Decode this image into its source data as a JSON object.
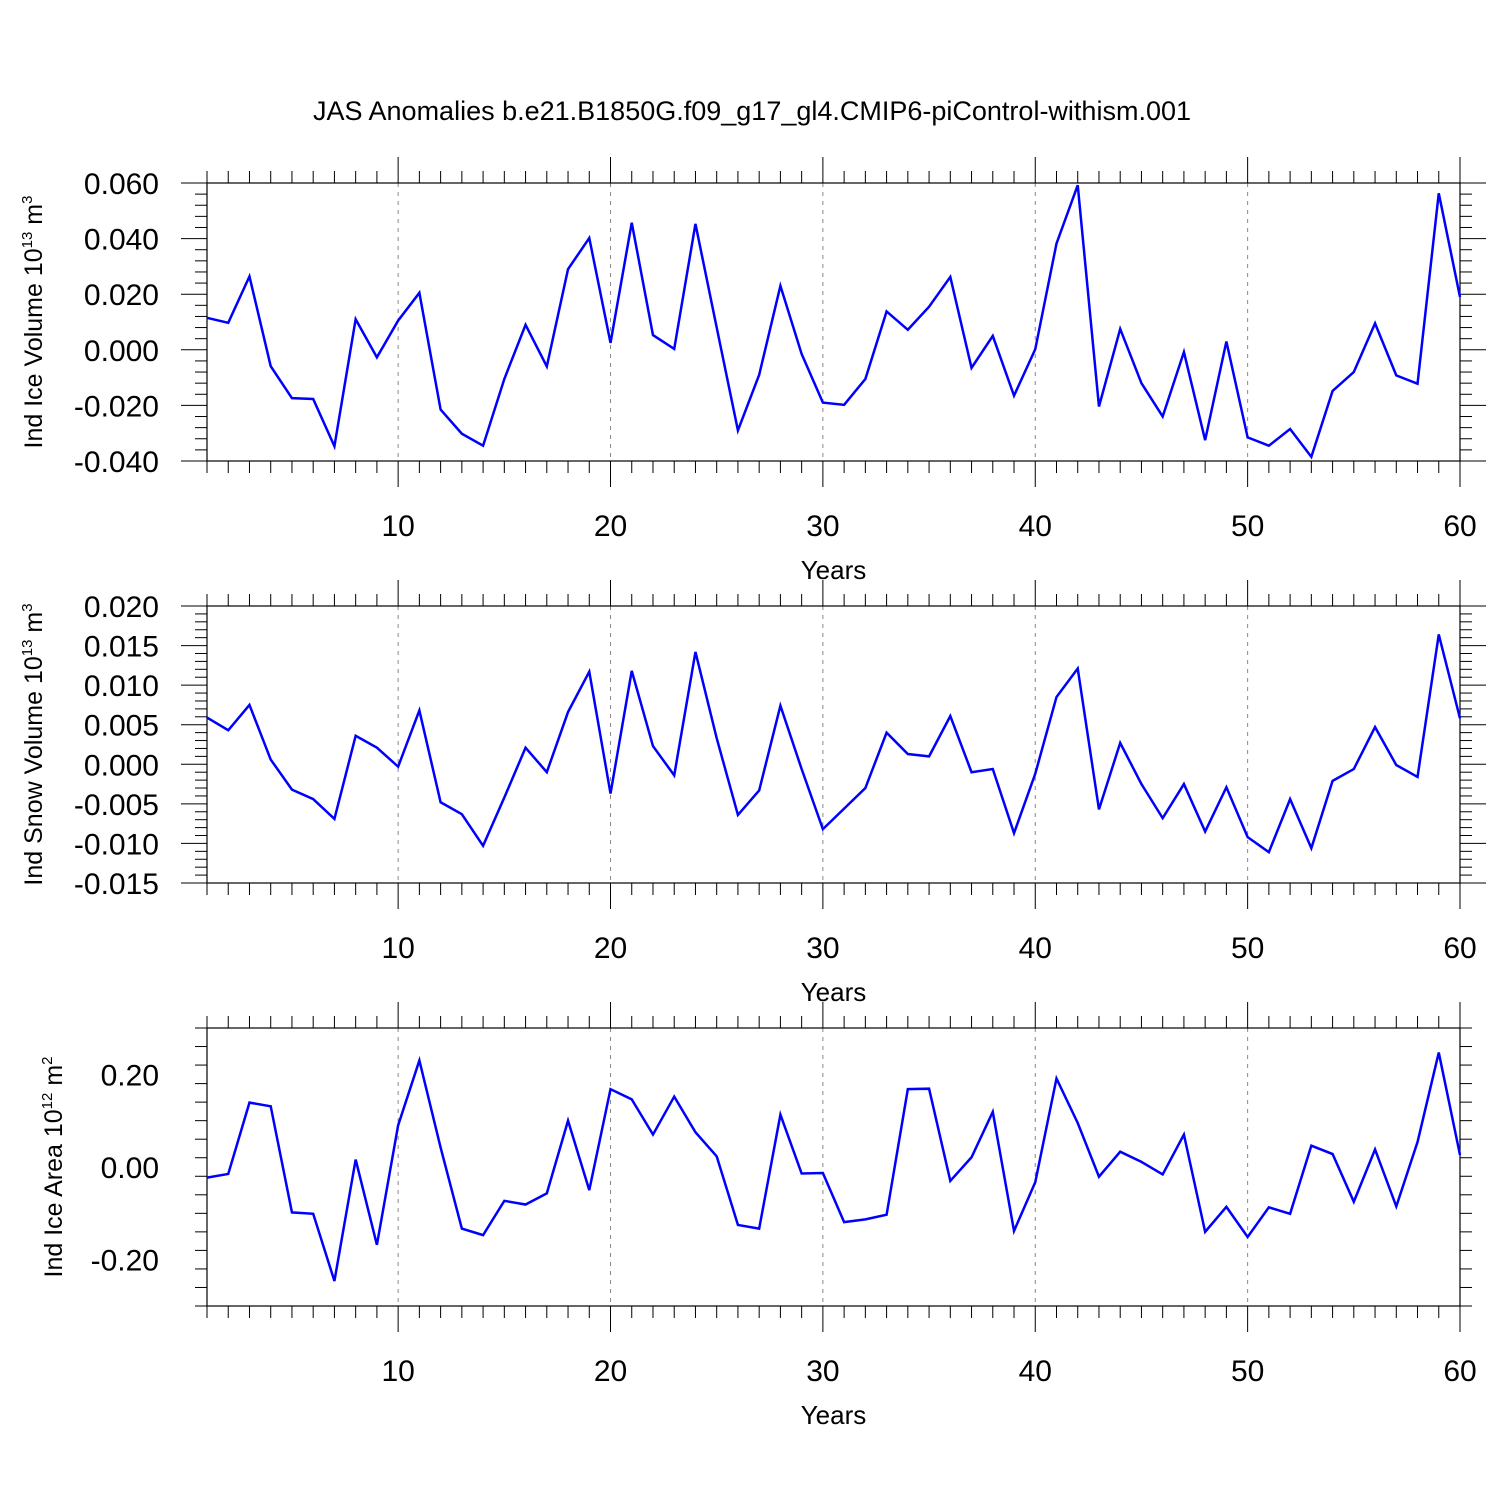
{
  "title": "JAS Anomalies b.e21.B1850G.f09_g17_gl4.CMIP6-piControl-withism.001",
  "colors": {
    "line": "#0000ff",
    "axis": "#000000",
    "grid": "#888888"
  },
  "chart_data": [
    {
      "type": "line",
      "ylabel": {
        "main": "Ind Ice Volume 10",
        "exp": "13",
        "unit": " m",
        "unit_exp": "3"
      },
      "xlabel": "Years",
      "xlim": [
        1,
        60
      ],
      "ylim": [
        -0.04,
        0.06
      ],
      "x_ticks": [
        10,
        20,
        30,
        40,
        50,
        60
      ],
      "x_tick_labels": [
        "10",
        "20",
        "30",
        "40",
        "50",
        "60"
      ],
      "y_ticks": [
        -0.04,
        -0.02,
        0.0,
        0.02,
        0.04,
        0.06
      ],
      "y_tick_labels": [
        "-0.040",
        "-0.020",
        "0.000",
        "0.020",
        "0.040",
        "0.060"
      ],
      "grid": "vertical dashed at major x ticks",
      "x": [
        1,
        2,
        3,
        4,
        5,
        6,
        7,
        8,
        9,
        10,
        11,
        12,
        13,
        14,
        15,
        16,
        17,
        18,
        19,
        20,
        21,
        22,
        23,
        24,
        25,
        26,
        27,
        28,
        29,
        30,
        31,
        32,
        33,
        34,
        35,
        36,
        37,
        38,
        39,
        40,
        41,
        42,
        43,
        44,
        45,
        46,
        47,
        48,
        49,
        50,
        51,
        52,
        53,
        54,
        55,
        56,
        57,
        58,
        59,
        60
      ],
      "values": [
        0.0115,
        0.0097,
        0.0264,
        -0.0059,
        -0.0174,
        -0.0177,
        -0.0347,
        0.011,
        -0.0027,
        0.0105,
        0.0205,
        -0.0215,
        -0.0302,
        -0.0345,
        -0.0105,
        0.009,
        -0.006,
        0.029,
        0.0402,
        0.0025,
        0.0457,
        0.0053,
        0.0003,
        0.0453,
        0.008,
        -0.029,
        -0.009,
        0.023,
        -0.0015,
        -0.019,
        -0.0198,
        -0.0105,
        0.0138,
        0.0072,
        0.0155,
        0.0262,
        -0.0065,
        0.005,
        -0.0165,
        0.0002,
        0.0382,
        0.0592,
        -0.0204,
        0.0075,
        -0.012,
        -0.024,
        -0.0008,
        -0.0325,
        0.003,
        -0.0315,
        -0.0345,
        -0.0285,
        -0.0385,
        -0.0148,
        -0.008,
        0.0095,
        -0.0092,
        -0.0122,
        0.0563,
        0.019
      ]
    },
    {
      "type": "line",
      "ylabel": {
        "main": "Ind Snow Volume 10",
        "exp": "13",
        "unit": " m",
        "unit_exp": "3"
      },
      "xlabel": "Years",
      "xlim": [
        1,
        60
      ],
      "ylim": [
        -0.015,
        0.02
      ],
      "x_ticks": [
        10,
        20,
        30,
        40,
        50,
        60
      ],
      "x_tick_labels": [
        "10",
        "20",
        "30",
        "40",
        "50",
        "60"
      ],
      "y_ticks": [
        -0.015,
        -0.01,
        -0.005,
        0.0,
        0.005,
        0.01,
        0.015,
        0.02
      ],
      "y_tick_labels": [
        "-0.015",
        "-0.010",
        "-0.005",
        "0.000",
        "0.005",
        "0.010",
        "0.015",
        "0.020"
      ],
      "grid": "vertical dashed at major x ticks",
      "x": [
        1,
        2,
        3,
        4,
        5,
        6,
        7,
        8,
        9,
        10,
        11,
        12,
        13,
        14,
        15,
        16,
        17,
        18,
        19,
        20,
        21,
        22,
        23,
        24,
        25,
        26,
        27,
        28,
        29,
        30,
        31,
        32,
        33,
        34,
        35,
        36,
        37,
        38,
        39,
        40,
        41,
        42,
        43,
        44,
        45,
        46,
        47,
        48,
        49,
        50,
        51,
        52,
        53,
        54,
        55,
        56,
        57,
        58,
        59,
        60
      ],
      "values": [
        0.0059,
        0.0043,
        0.0075,
        0.0006,
        -0.0032,
        -0.0044,
        -0.0069,
        0.0036,
        0.0021,
        -0.0003,
        0.0068,
        -0.0048,
        -0.0063,
        -0.0103,
        -0.0042,
        0.0021,
        -0.001,
        0.0066,
        0.0117,
        -0.0037,
        0.0118,
        0.0023,
        -0.0014,
        0.0142,
        0.0033,
        -0.0064,
        -0.0033,
        0.0074,
        -0.0006,
        -0.0082,
        -0.0056,
        -0.003,
        0.004,
        0.0013,
        0.001,
        0.0061,
        -0.001,
        -0.0006,
        -0.0087,
        -0.0012,
        0.0085,
        0.0121,
        -0.0057,
        0.0027,
        -0.0025,
        -0.0068,
        -0.0025,
        -0.0085,
        -0.0029,
        -0.0092,
        -0.0111,
        -0.0044,
        -0.0106,
        -0.0021,
        -0.0006,
        0.0047,
        -0.0001,
        -0.0016,
        0.0164,
        0.0058
      ]
    },
    {
      "type": "line",
      "ylabel": {
        "main": "Ind Ice Area 10",
        "exp": "12",
        "unit": " m",
        "unit_exp": "2"
      },
      "xlabel": "Years",
      "xlim": [
        1,
        60
      ],
      "ylim": [
        -0.3,
        0.3
      ],
      "x_ticks": [
        10,
        20,
        30,
        40,
        50,
        60
      ],
      "x_tick_labels": [
        "10",
        "20",
        "30",
        "40",
        "50",
        "60"
      ],
      "y_ticks": [
        -0.2,
        0.0,
        0.2
      ],
      "y_tick_labels": [
        "-0.20",
        "0.00",
        "0.20"
      ],
      "grid": "vertical dashed at major x ticks",
      "x": [
        1,
        2,
        3,
        4,
        5,
        6,
        7,
        8,
        9,
        10,
        11,
        12,
        13,
        14,
        15,
        16,
        17,
        18,
        19,
        20,
        21,
        22,
        23,
        24,
        25,
        26,
        27,
        28,
        29,
        30,
        31,
        32,
        33,
        34,
        35,
        36,
        37,
        38,
        39,
        40,
        41,
        42,
        43,
        44,
        45,
        46,
        47,
        48,
        49,
        50,
        51,
        52,
        53,
        54,
        55,
        56,
        57,
        58,
        59,
        60
      ],
      "values": [
        -0.023,
        -0.015,
        0.139,
        0.131,
        -0.098,
        -0.101,
        -0.246,
        0.016,
        -0.168,
        0.09,
        0.23,
        0.042,
        -0.133,
        -0.147,
        -0.073,
        -0.081,
        -0.057,
        0.1,
        -0.05,
        0.168,
        0.146,
        0.07,
        0.152,
        0.075,
        0.023,
        -0.125,
        -0.133,
        0.113,
        -0.014,
        -0.013,
        -0.119,
        -0.113,
        -0.103,
        0.168,
        0.169,
        -0.03,
        0.021,
        0.119,
        -0.138,
        -0.033,
        0.191,
        0.095,
        -0.021,
        0.033,
        0.011,
        -0.016,
        0.07,
        -0.14,
        -0.086,
        -0.151,
        -0.087,
        -0.101,
        0.046,
        0.028,
        -0.075,
        0.038,
        -0.085,
        0.054,
        0.247,
        0.026
      ]
    }
  ]
}
